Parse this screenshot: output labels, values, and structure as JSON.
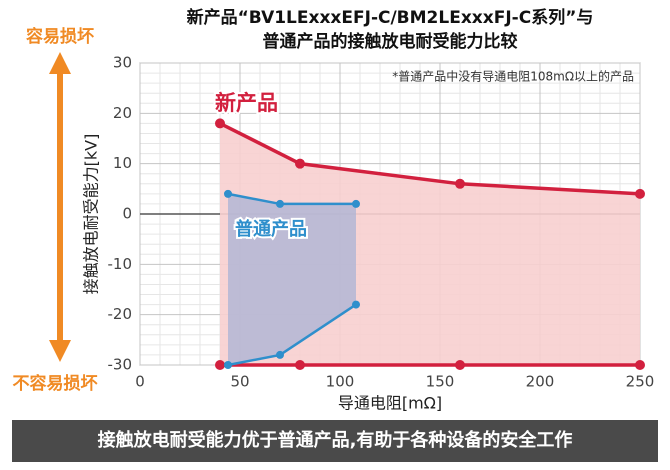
{
  "chart_data": {
    "type": "range_area",
    "title": [
      "新产品“BV1LExxxEFJ-C/BM2LExxxFJ-C系列”与",
      "普通产品的接触放电耐受能力比较"
    ],
    "note": "*普通产品中没有导通电阻108mΩ以上的产品",
    "xlabel": "导通电阻[mΩ]",
    "ylabel": "接触放电耐受能力[kV]",
    "annotations": {
      "top": "容易损坏",
      "bottom": "不容易损坏"
    },
    "xlim": [
      0,
      250
    ],
    "xticks": [
      0,
      50,
      100,
      150,
      200,
      250
    ],
    "ylim": [
      -30,
      30
    ],
    "yticks": [
      -30,
      -20,
      -10,
      0,
      10,
      20,
      30
    ],
    "grid": true,
    "series": [
      {
        "name": "新产品",
        "color": "#d2203e",
        "fill": "#f7cfcf",
        "x": [
          40,
          80,
          160,
          250
        ],
        "upper": [
          18,
          10,
          6,
          4
        ],
        "lower": [
          -30,
          -30,
          -30,
          -30
        ]
      },
      {
        "name": "普通产品",
        "color": "#2f8fcc",
        "fill": "#aab3d6",
        "x": [
          44,
          70,
          108
        ],
        "upper": [
          4,
          2,
          2
        ],
        "lower": [
          -30,
          -28,
          -18
        ]
      }
    ]
  },
  "footer": "接触放电耐受能力优于普通产品,有助于各种设备的安全工作"
}
